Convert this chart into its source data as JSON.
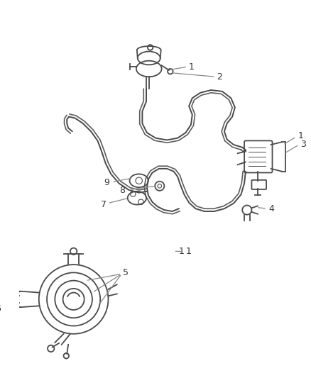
{
  "bg_color": "#ffffff",
  "line_color": "#4a4a4a",
  "label_color": "#888888",
  "text_color": "#333333",
  "fig_width": 4.38,
  "fig_height": 5.33,
  "dpi": 100
}
